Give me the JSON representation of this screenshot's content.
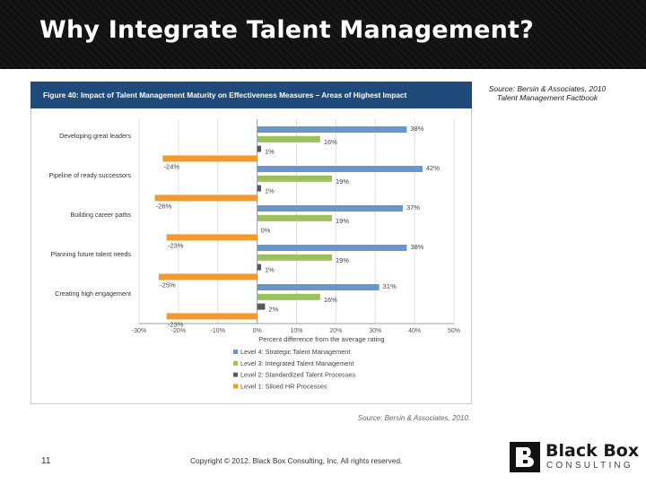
{
  "slide": {
    "title": "Why Integrate Talent Management?",
    "source_note_line1": "Source: Bersin & Associates, 2010",
    "source_note_line2": "Talent Management Factbook",
    "slide_number": "11",
    "copyright": "Copyright © 2012. Black Box Consulting, Inc. All rights reserved.",
    "logo_name": "Black Box",
    "logo_sub": "CONSULTING"
  },
  "figure": {
    "title": "Figure 40: Impact of Talent Management Maturity on Effectiveness Measures – Areas of Highest Impact",
    "source": "Source: Bersin & Associates, 2010."
  },
  "colors": {
    "header_bg": "#111111",
    "figure_banner": "#1f4b7a",
    "level4": "#6a96cf",
    "level3": "#9cc060",
    "level2": "#5a5a5a",
    "level1": "#f39a2b"
  },
  "chart_data": {
    "type": "bar",
    "orientation": "horizontal",
    "categories": [
      "Developing great leaders",
      "Pipeline of ready successors",
      "Building career paths",
      "Planning future talent needs",
      "Creating high engagement"
    ],
    "series": [
      {
        "name": "Level 4: Strategic Talent Management",
        "values": [
          38,
          42,
          37,
          38,
          31
        ],
        "labels": [
          "38%",
          "42%",
          "37%",
          "38%",
          "31%"
        ],
        "color": "#6a96cf"
      },
      {
        "name": "Level 3: Integrated Talent Management",
        "values": [
          16,
          19,
          19,
          19,
          16
        ],
        "labels": [
          "16%",
          "19%",
          "19%",
          "19%",
          "16%"
        ],
        "color": "#9cc060"
      },
      {
        "name": "Level 2: Standardized Talent Processes",
        "values": [
          1,
          1,
          0,
          1,
          2
        ],
        "labels": [
          "1%",
          "1%",
          "0%",
          "1%",
          "2%"
        ],
        "color": "#5a5a5a"
      },
      {
        "name": "Level 1: Siloed HR Processes",
        "values": [
          -24,
          -26,
          -23,
          -25,
          -23
        ],
        "labels": [
          "-24%",
          "-26%",
          "-23%",
          "-25%",
          "-23%"
        ],
        "color": "#f39a2b"
      }
    ],
    "xlim": [
      -30,
      50
    ],
    "xticks": [
      "-30%",
      "-20%",
      "-10%",
      "0%",
      "10%",
      "20%",
      "30%",
      "40%",
      "50%"
    ],
    "xlabel": "Percent difference from the average rating",
    "ylabel": "",
    "grid": true,
    "legend_position": "bottom"
  }
}
